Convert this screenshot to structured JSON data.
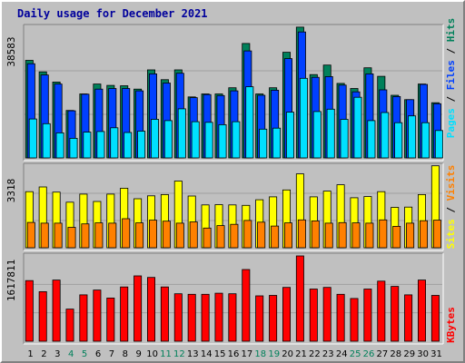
{
  "chart_data": {
    "title": "Daily usage for December 2021",
    "type": "bar",
    "days": [
      "1",
      "2",
      "3",
      "4",
      "5",
      "6",
      "7",
      "8",
      "9",
      "10",
      "11",
      "12",
      "13",
      "14",
      "15",
      "16",
      "17",
      "18",
      "19",
      "20",
      "21",
      "22",
      "23",
      "24",
      "25",
      "26",
      "27",
      "28",
      "29",
      "30",
      "31"
    ],
    "weekend_days": [
      "4",
      "5",
      "11",
      "12",
      "18",
      "19",
      "25",
      "26"
    ],
    "panels": [
      {
        "id": "hits",
        "ymax_label": "38583",
        "ymax": 38583,
        "series": [
          {
            "name": "Pages",
            "color": "#00e0ff",
            "values": [
              11500,
              10100,
              7400,
              5800,
              7600,
              7800,
              8900,
              7500,
              7900,
              11400,
              11000,
              14500,
              10700,
              10500,
              9800,
              10700,
              21000,
              8500,
              8800,
              13500,
              23500,
              13700,
              14400,
              11400,
              17900,
              11000,
              13400,
              10400,
              12400,
              10400,
              8100
            ]
          },
          {
            "name": "Files",
            "color": "#0040ff",
            "values": [
              27800,
              24500,
              21800,
              13900,
              18800,
              20300,
              20500,
              20500,
              19800,
              24800,
              22100,
              25000,
              17800,
              18700,
              18400,
              19800,
              31600,
              18500,
              20000,
              29300,
              37200,
              23800,
              24000,
              21500,
              19500,
              24800,
              20100,
              18100,
              17200,
              21700,
              16000
            ]
          },
          {
            "name": "Hits",
            "color": "#00805a",
            "values": [
              28800,
              25400,
              22400,
              14000,
              18900,
              21800,
              21400,
              21300,
              20300,
              26000,
              23100,
              26000,
              18000,
              18900,
              18900,
              20700,
              33800,
              18900,
              20700,
              31200,
              38600,
              24600,
              27400,
              22000,
              20500,
              26600,
              24100,
              18500,
              17200,
              21800,
              16300
            ]
          }
        ]
      },
      {
        "id": "visits",
        "ymax_label": "3318",
        "ymax": 3318,
        "series": [
          {
            "name": "Visits",
            "color": "#ff8000",
            "values": [
              1030,
              1000,
              1000,
              830,
              970,
              1010,
              1000,
              1180,
              1010,
              1120,
              1080,
              1000,
              1050,
              800,
              900,
              950,
              1110,
              1040,
              880,
              1010,
              1130,
              1090,
              1000,
              1020,
              1010,
              1000,
              1130,
              870,
              1000,
              1100,
              1120
            ]
          },
          {
            "name": "Sites",
            "color": "#ffff00",
            "values": [
              2280,
              2470,
              2260,
              1850,
              2180,
              1880,
              2180,
              2420,
              1990,
              2110,
              2160,
              2710,
              2100,
              1740,
              1750,
              1740,
              1720,
              1950,
              2070,
              2350,
              3000,
              2070,
              2300,
              2560,
              2030,
              2080,
              2280,
              1640,
              1650,
              2160,
              3330
            ]
          }
        ]
      },
      {
        "id": "kbytes",
        "ymax_label": "1617811",
        "ymax": 1617811,
        "series": [
          {
            "name": "KBytes",
            "color": "#ff0000",
            "values": [
              1150000,
              940000,
              1160000,
              610000,
              880000,
              970000,
              820000,
              1030000,
              1240000,
              1210000,
              1030000,
              900000,
              890000,
              890000,
              910000,
              900000,
              1360000,
              860000,
              870000,
              1020000,
              1617811,
              990000,
              1020000,
              890000,
              810000,
              990000,
              1140000,
              1040000,
              880000,
              1160000,
              870000
            ]
          }
        ]
      }
    ],
    "y_labels": {
      "hits": {
        "Pages": "Pages",
        "sep1": " / ",
        "Files": "Files",
        "sep2": " / ",
        "Hits": "Hits"
      },
      "visits": {
        "Sites": "Sites",
        "sep": " / ",
        "Visits": "Visits"
      },
      "kbytes": {
        "KBytes": "KBytes"
      }
    },
    "colors": {
      "background": "#c0c0c0",
      "panel_bg": "#c0c0c0",
      "title": "#00009c",
      "weekday_label": "#000000",
      "weekend_label": "#00805a",
      "separator": "#000000"
    }
  }
}
